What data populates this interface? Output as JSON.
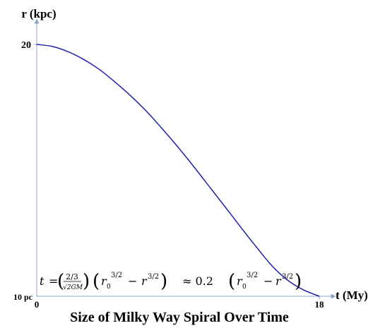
{
  "chart_data": {
    "type": "line",
    "title": "Size of Milky Way Spiral Over Time",
    "xlabel": "t (My)",
    "ylabel": "r (kpc)",
    "xlim": [
      0,
      18
    ],
    "ylim": [
      10,
      20
    ],
    "x_ticks": [
      "0",
      "18"
    ],
    "y_ticks": [
      "10 pc",
      "20"
    ],
    "grid": false,
    "series": [
      {
        "color": "#1f1fb0",
        "x": [
          0,
          1,
          2,
          3,
          4,
          5,
          6,
          7,
          8,
          9,
          10,
          11,
          12,
          13,
          14,
          15,
          16,
          17,
          18
        ],
        "y": [
          20.0,
          19.92,
          19.71,
          19.4,
          19.0,
          18.5,
          17.95,
          17.34,
          16.65,
          15.92,
          15.15,
          14.35,
          13.55,
          12.74,
          11.95,
          11.2,
          10.63,
          10.25,
          10.0
        ]
      }
    ],
    "annotation": {
      "lhs": "t",
      "equals": "=",
      "frac_num": "2/3",
      "frac_den": "√2GM",
      "r0": "r",
      "sub0": "0",
      "pow": "3/2",
      "minus": "−",
      "r": "r",
      "approx": "≈ 0.2",
      "open": "(",
      "close": ")"
    }
  }
}
